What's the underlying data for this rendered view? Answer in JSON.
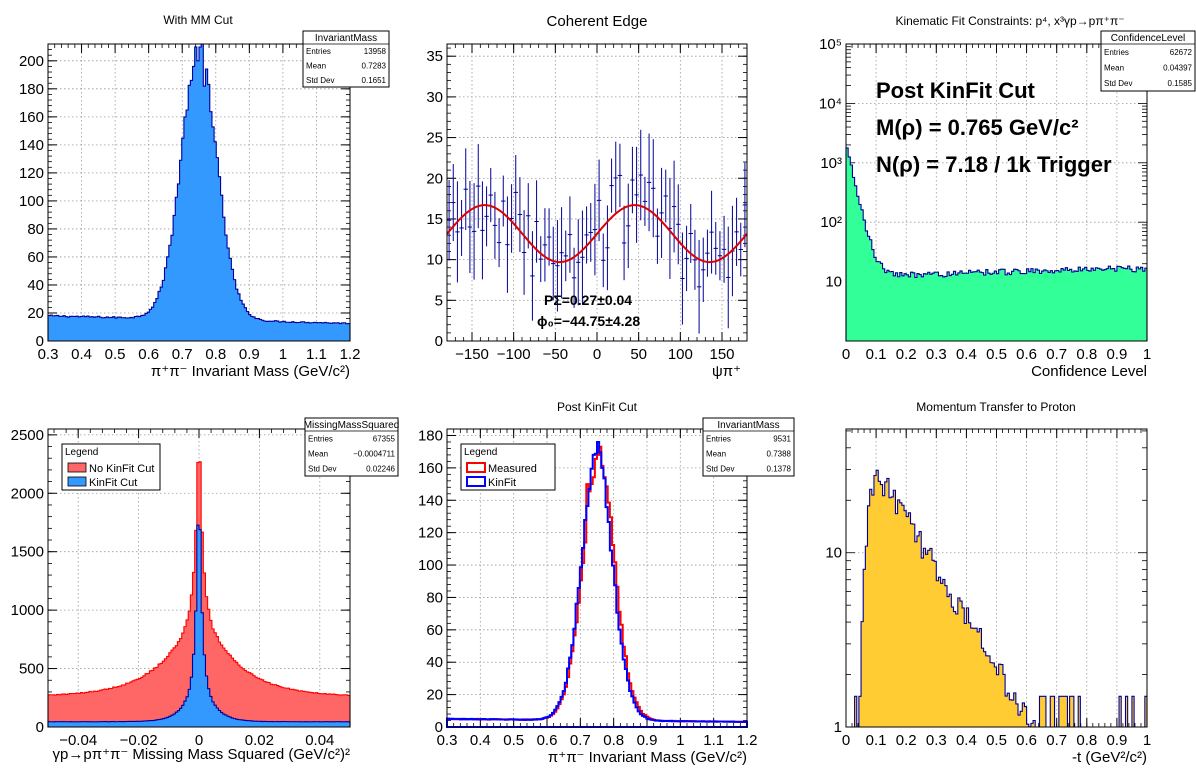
{
  "colors": {
    "blue_fill": "#3399ff",
    "blue_line": "#000099",
    "green_fill": "#33ff99",
    "yellow_fill": "#ffcc33",
    "red_fill": "#ff6666",
    "red_line": "#ff0000",
    "kinfit_line": "#0000ff",
    "fit_curve": "#dd0000"
  },
  "chart_data": [
    {
      "id": "p1",
      "type": "histogram",
      "title": "With MM Cut",
      "xlabel": "π⁺π⁻ Invariant Mass (GeV/c²)",
      "xlim": [
        0.3,
        1.2
      ],
      "ylim": [
        0,
        212
      ],
      "xticks": [
        0.3,
        0.4,
        0.5,
        0.6,
        0.7,
        0.8,
        0.9,
        1,
        1.1,
        1.2
      ],
      "xtick_labels": [
        "0.3",
        "0.4",
        "0.5",
        "0.6",
        "0.7",
        "0.8",
        "0.9",
        "1",
        "1.1",
        "1.2"
      ],
      "yticks": [
        0,
        20,
        40,
        60,
        80,
        100,
        120,
        140,
        160,
        180,
        200
      ],
      "ytick_labels": [
        "0",
        "20",
        "40",
        "60",
        "80",
        "100",
        "120",
        "140",
        "160",
        "180",
        "200"
      ],
      "stats": {
        "name": "InvariantMass",
        "rows": [
          [
            "Entries",
            "13958"
          ],
          [
            "Mean",
            "0.7283"
          ],
          [
            "Std Dev",
            "0.1651"
          ]
        ]
      },
      "series": [
        {
          "fill": "blue_fill",
          "line": "blue_line",
          "shape": {
            "kind": "peak",
            "center": 0.75,
            "height": 195,
            "width": 0.065,
            "bg": 18,
            "bgSlope": -6,
            "noise": 0.1,
            "spikes": [
              [
                0.745,
                200
              ],
              [
                0.735,
                196
              ],
              [
                0.73,
                186
              ],
              [
                0.765,
                182
              ]
            ]
          }
        }
      ]
    },
    {
      "id": "p2",
      "type": "scatter",
      "title": "Coherent Edge",
      "xlabel": "ψπ⁺",
      "xlim": [
        -180,
        180
      ],
      "ylim": [
        0,
        36.5
      ],
      "xticks": [
        -150,
        -100,
        -50,
        0,
        50,
        100,
        150
      ],
      "xtick_labels": [
        "−150",
        "−100",
        "−50",
        "0",
        "50",
        "100",
        "150"
      ],
      "yticks": [
        0,
        5,
        10,
        15,
        20,
        25,
        30,
        35
      ],
      "ytick_labels": [
        "0",
        "5",
        "10",
        "15",
        "20",
        "25",
        "30",
        "35"
      ],
      "fit": {
        "mean": 13.2,
        "amplitude": 3.5,
        "phi0_deg": -44.75
      },
      "annotations": [
        "PΣ=0.27±0.04",
        "ϕ₀=−44.75±4.28"
      ],
      "points": {
        "n": 72,
        "mean": 13.2,
        "amp": 3.5,
        "scatter": 4.5,
        "err": 4.5
      }
    },
    {
      "id": "p3",
      "type": "histogram",
      "title": "Kinematic Fit Constraints: p⁴, x³γp→pπ⁺π⁻",
      "xlabel": "Confidence Level",
      "log_y": true,
      "xlim": [
        0,
        1
      ],
      "ylim_log": [
        0,
        5
      ],
      "xticks": [
        0,
        0.1,
        0.2,
        0.3,
        0.4,
        0.5,
        0.6,
        0.7,
        0.8,
        0.9,
        1
      ],
      "xtick_labels": [
        "0",
        "0.1",
        "0.2",
        "0.3",
        "0.4",
        "0.5",
        "0.6",
        "0.7",
        "0.8",
        "0.9",
        "1"
      ],
      "yticks": [
        10,
        100,
        1000,
        10000,
        100000
      ],
      "ytick_labels": [
        "10",
        "10²",
        "10³",
        "10⁴",
        "10⁵"
      ],
      "stats": {
        "name": "ConfidenceLevel",
        "rows": [
          [
            "Entries",
            "62672"
          ],
          [
            "Mean",
            "0.04397"
          ],
          [
            "Std Dev",
            "0.1585"
          ]
        ]
      },
      "annotations": [
        "Post KinFit Cut",
        "M(ρ) = 0.765 GeV/c²",
        "N(ρ) = 7.18 / 1k Trigger"
      ],
      "series": [
        {
          "fill": "green_fill",
          "line": "blue_line",
          "shape": {
            "kind": "falling",
            "first": 2000,
            "plateau": 12,
            "decay": 0.02,
            "noise": 0.25
          }
        }
      ]
    },
    {
      "id": "p4",
      "type": "histogram",
      "title": "",
      "xlabel": "γp→pπ⁺π⁻ Missing Mass Squared (GeV/c²)²",
      "xlim": [
        -0.05,
        0.05
      ],
      "ylim": [
        0,
        2550
      ],
      "xticks": [
        -0.04,
        -0.02,
        0,
        0.02,
        0.04
      ],
      "xtick_labels": [
        "−0.04",
        "−0.02",
        "0",
        "0.02",
        "0.04"
      ],
      "yticks": [
        0,
        500,
        1000,
        1500,
        2000,
        2500
      ],
      "ytick_labels": [
        "0",
        "500",
        "1000",
        "1500",
        "2000",
        "2500"
      ],
      "stats": {
        "name": "MissingMassSquared",
        "rows": [
          [
            "Entries",
            "67355"
          ],
          [
            "Mean",
            "−0.0004711"
          ],
          [
            "Std Dev",
            "0.02246"
          ]
        ]
      },
      "legend": {
        "title": "Legend",
        "entries": [
          {
            "label": "No KinFit Cut",
            "color": "red_fill"
          },
          {
            "label": "KinFit Cut",
            "color": "blue_fill"
          }
        ]
      },
      "series": [
        {
          "fill": "red_fill",
          "line": "red_line",
          "shape": {
            "kind": "cusp",
            "center": 0,
            "height": 2440,
            "narrow": 0.0012,
            "wide": 0.012,
            "wideAmp": 820,
            "bg": 260,
            "noise": 0.04
          }
        },
        {
          "fill": "blue_fill",
          "line": "blue_line",
          "shape": {
            "kind": "cusp",
            "center": 0,
            "height": 2300,
            "narrow": 0.0009,
            "wide": 0.004,
            "wideAmp": 520,
            "bg": 45,
            "noise": 0.06
          }
        }
      ]
    },
    {
      "id": "p5",
      "type": "histogram",
      "title": "Post KinFit Cut",
      "xlabel": "π⁺π⁻ Invariant Mass (GeV/c²)",
      "xlim": [
        0.3,
        1.2
      ],
      "ylim": [
        0,
        184
      ],
      "xticks": [
        0.3,
        0.4,
        0.5,
        0.6,
        0.7,
        0.8,
        0.9,
        1,
        1.1,
        1.2
      ],
      "xtick_labels": [
        "0.3",
        "0.4",
        "0.5",
        "0.6",
        "0.7",
        "0.8",
        "0.9",
        "1",
        "1.1",
        "1.2"
      ],
      "yticks": [
        0,
        20,
        40,
        60,
        80,
        100,
        120,
        140,
        160,
        180
      ],
      "ytick_labels": [
        "0",
        "20",
        "40",
        "60",
        "80",
        "100",
        "120",
        "140",
        "160",
        "180"
      ],
      "stats": {
        "name": "InvariantMass",
        "rows": [
          [
            "Entries",
            "9531"
          ],
          [
            "Mean",
            "0.7388"
          ],
          [
            "Std Dev",
            "0.1378"
          ]
        ]
      },
      "legend": {
        "title": "Legend",
        "entries": [
          {
            "label": "Measured",
            "color": "red_line"
          },
          {
            "label": "KinFit",
            "color": "kinfit_line"
          }
        ]
      },
      "series": [
        {
          "fill": "none",
          "line": "red_line",
          "shape": {
            "kind": "peak",
            "center": 0.755,
            "height": 165,
            "width": 0.058,
            "bg": 5,
            "bgSlope": -2,
            "noise": 0.12,
            "spikes": [
              [
                0.755,
                168
              ],
              [
                0.72,
                150
              ]
            ]
          }
        },
        {
          "fill": "none",
          "line": "kinfit_line",
          "shape": {
            "kind": "peak",
            "center": 0.75,
            "height": 165,
            "width": 0.057,
            "bg": 5,
            "bgSlope": -2,
            "noise": 0.12,
            "spikes": [
              [
                0.75,
                176
              ],
              [
                0.74,
                168
              ],
              [
                0.765,
                160
              ]
            ]
          }
        }
      ]
    },
    {
      "id": "p6",
      "type": "histogram",
      "title": "Momentum Transfer to Proton",
      "xlabel": "-t (GeV²/c²)",
      "log_y": true,
      "xlim": [
        0,
        1
      ],
      "ylim_log": [
        0,
        1.71
      ],
      "xticks": [
        0,
        0.1,
        0.2,
        0.3,
        0.4,
        0.5,
        0.6,
        0.7,
        0.8,
        0.9,
        1
      ],
      "xtick_labels": [
        "0",
        "0.1",
        "0.2",
        "0.3",
        "0.4",
        "0.5",
        "0.6",
        "0.7",
        "0.8",
        "0.9",
        "1"
      ],
      "yticks": [
        1,
        10
      ],
      "ytick_labels": [
        "1",
        "10"
      ],
      "series": [
        {
          "fill": "yellow_fill",
          "line": "blue_line",
          "shape": {
            "kind": "tdist",
            "start": 0.045,
            "end": 0.78,
            "peak": 0.1,
            "max": 30,
            "decay": 6.5,
            "noise": 0.35
          }
        }
      ]
    }
  ]
}
